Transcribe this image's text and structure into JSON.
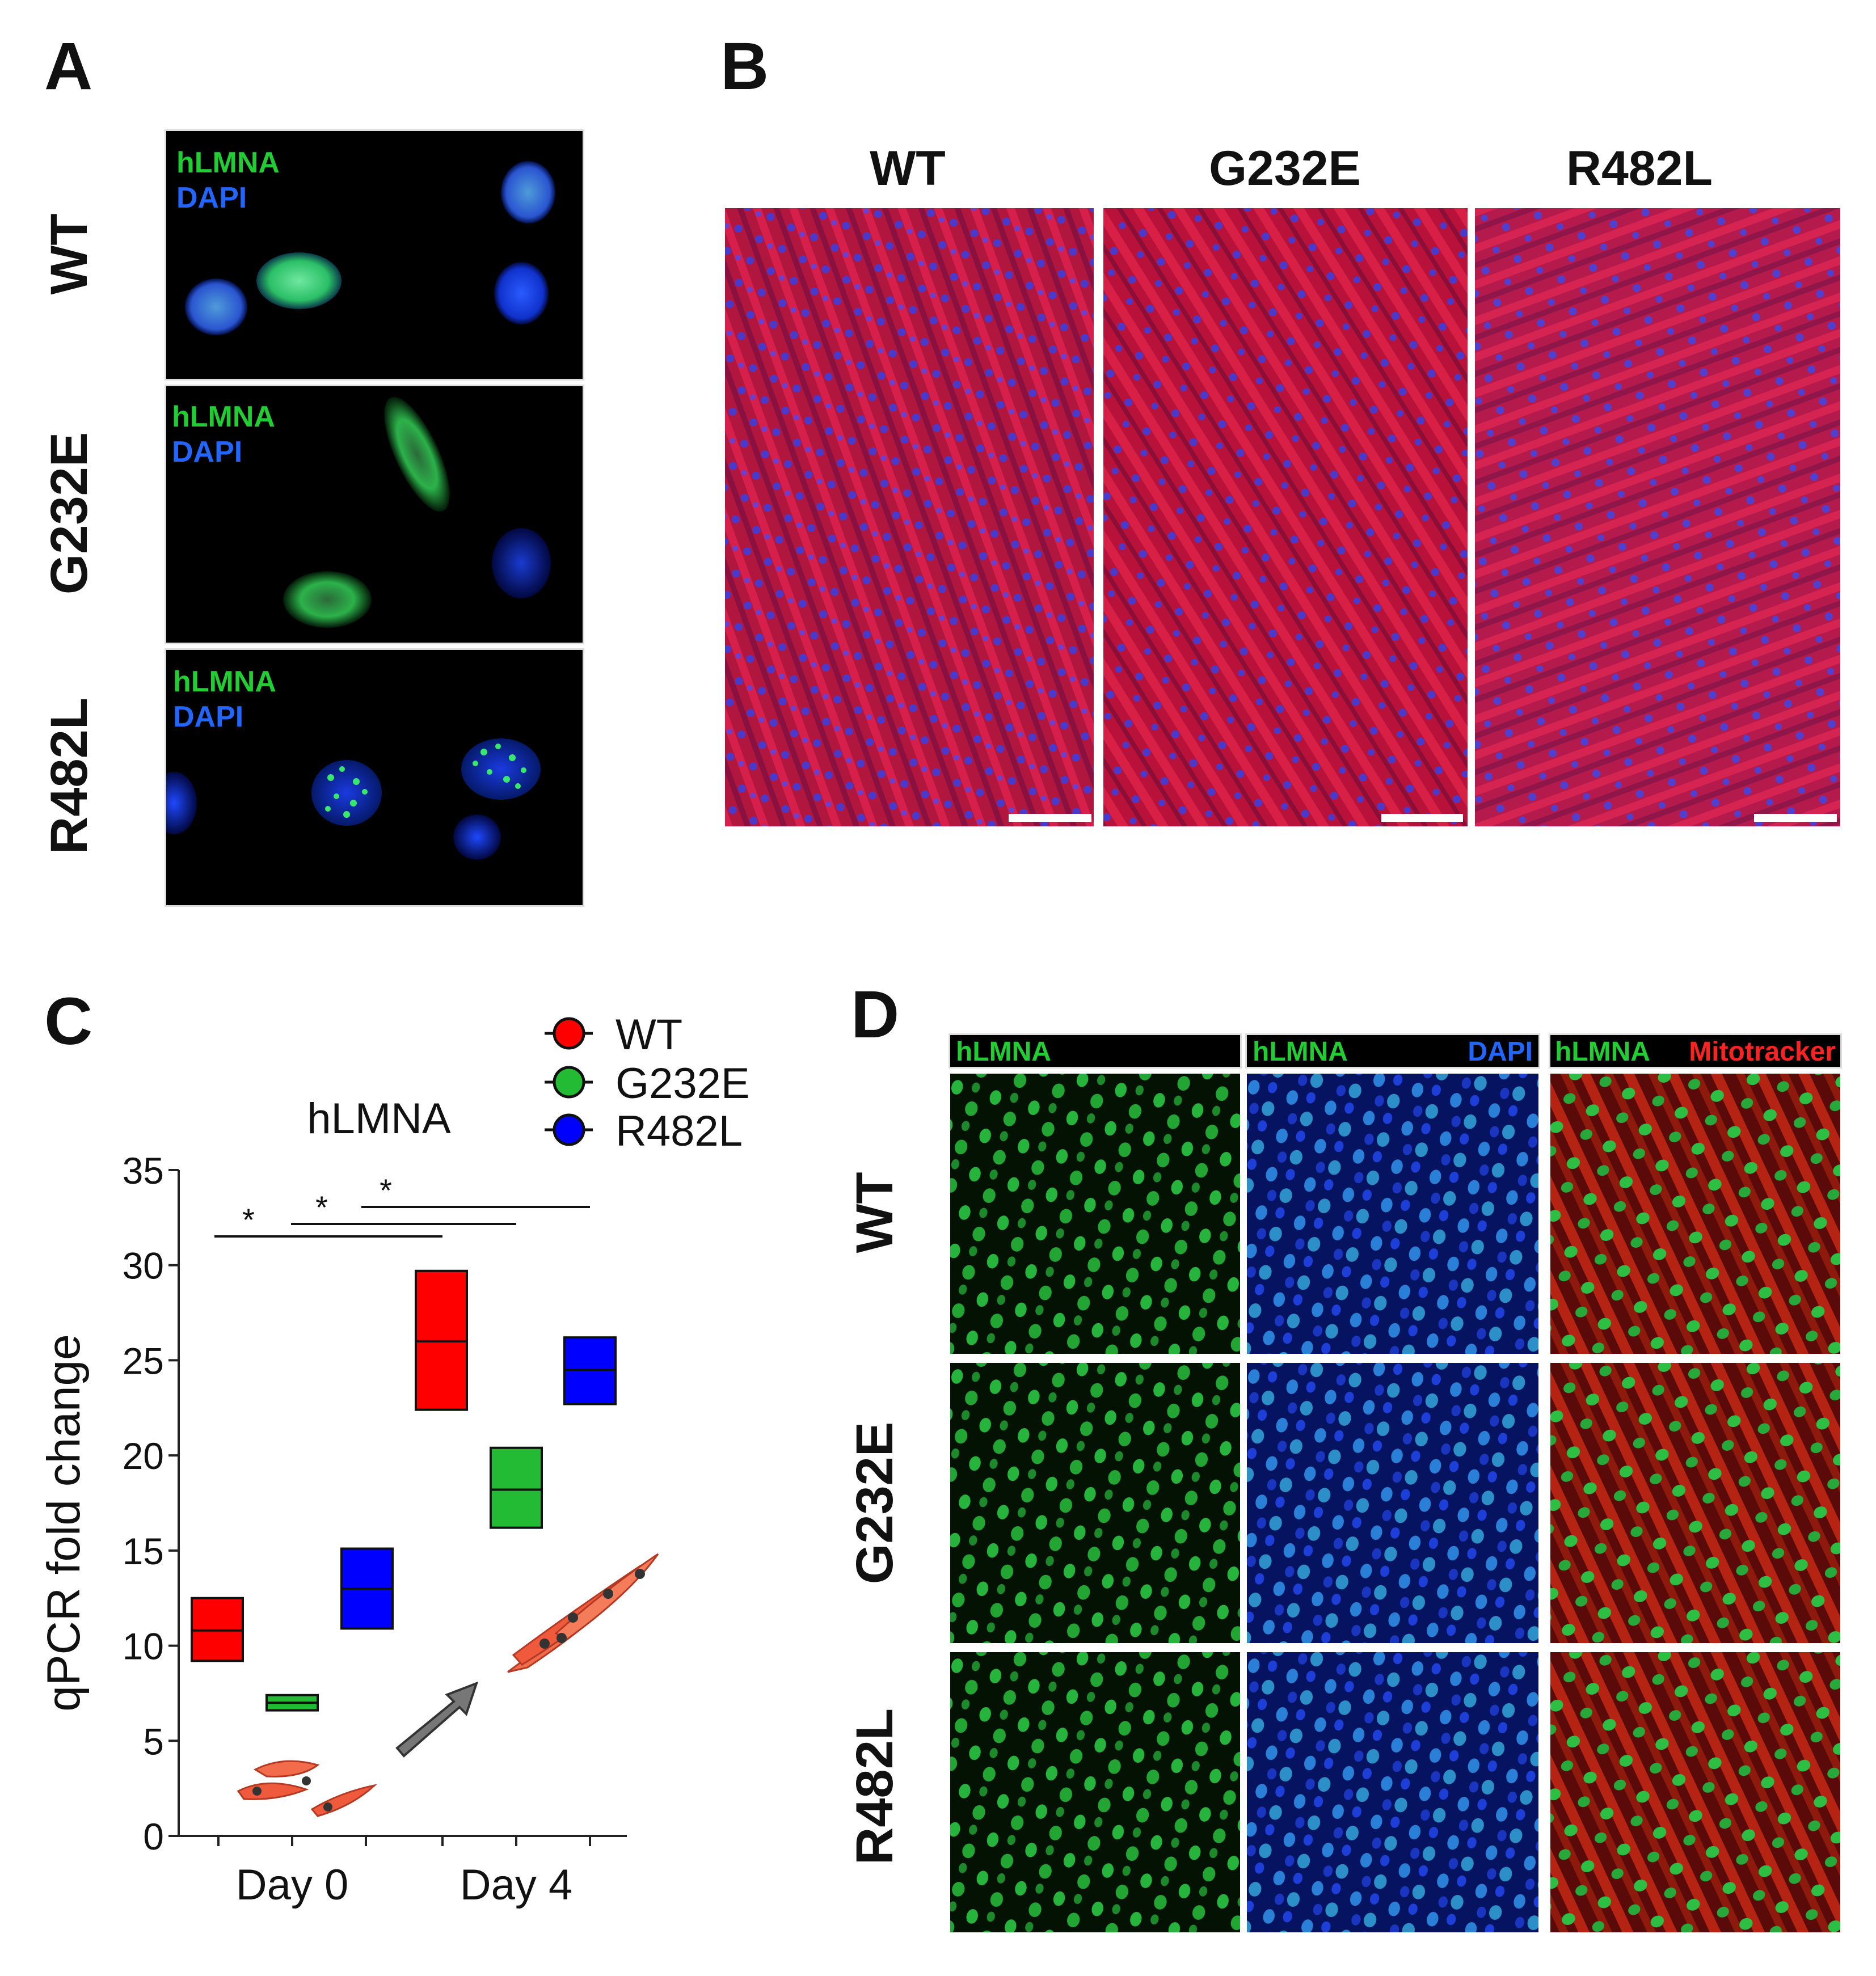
{
  "panels": {
    "A": {
      "letter": "A",
      "rows": [
        {
          "label": "WT",
          "overlay_top": "hLMNA",
          "overlay_bottom": "DAPI"
        },
        {
          "label": "G232E",
          "overlay_top": "hLMNA",
          "overlay_bottom": "DAPI"
        },
        {
          "label": "R482L",
          "overlay_top": "hLMNA",
          "overlay_bottom": "DAPI"
        }
      ]
    },
    "B": {
      "letter": "B",
      "columns": [
        "WT",
        "G232E",
        "R482L"
      ]
    },
    "C": {
      "letter": "C",
      "legend": [
        "WT",
        "G232E",
        "R482L"
      ],
      "significance": [
        "*",
        "*",
        "*"
      ]
    },
    "D": {
      "letter": "D",
      "headers": [
        {
          "left": "hLMNA",
          "right": ""
        },
        {
          "left": "hLMNA",
          "right": "DAPI"
        },
        {
          "left": "hLMNA",
          "right": "Mitotracker"
        }
      ],
      "rows": [
        "WT",
        "G232E",
        "R482L"
      ]
    }
  },
  "colors": {
    "wt": "#ff0000",
    "g232e": "#22bb33",
    "r482l": "#0000ff",
    "hlmna_text": "#22cc33",
    "dapi_text": "#2266ff",
    "mitotracker_text": "#ff2222"
  },
  "chart_data": {
    "type": "box",
    "title": "hLMNA",
    "ylabel": "qPCR fold change",
    "xlabel": "",
    "categories": [
      "Day 0",
      "Day 4"
    ],
    "ylim": [
      0,
      35
    ],
    "yticks": [
      0,
      5,
      10,
      15,
      20,
      25,
      30,
      35
    ],
    "legend_position": "top-right",
    "series": [
      {
        "name": "WT",
        "color": "#ff0000",
        "boxes": [
          {
            "day": "Day 0",
            "low": 9.2,
            "mid": 10.8,
            "high": 12.5
          },
          {
            "day": "Day 4",
            "low": 22.4,
            "mid": 26.0,
            "high": 29.7
          }
        ]
      },
      {
        "name": "G232E",
        "color": "#22bb33",
        "boxes": [
          {
            "day": "Day 0",
            "low": 6.6,
            "mid": 7.0,
            "high": 7.4
          },
          {
            "day": "Day 4",
            "low": 16.2,
            "mid": 18.2,
            "high": 20.4
          }
        ]
      },
      {
        "name": "R482L",
        "color": "#0000ff",
        "boxes": [
          {
            "day": "Day 0",
            "low": 10.9,
            "mid": 13.0,
            "high": 15.1
          },
          {
            "day": "Day 4",
            "low": 22.7,
            "mid": 24.5,
            "high": 26.2
          }
        ]
      }
    ]
  }
}
